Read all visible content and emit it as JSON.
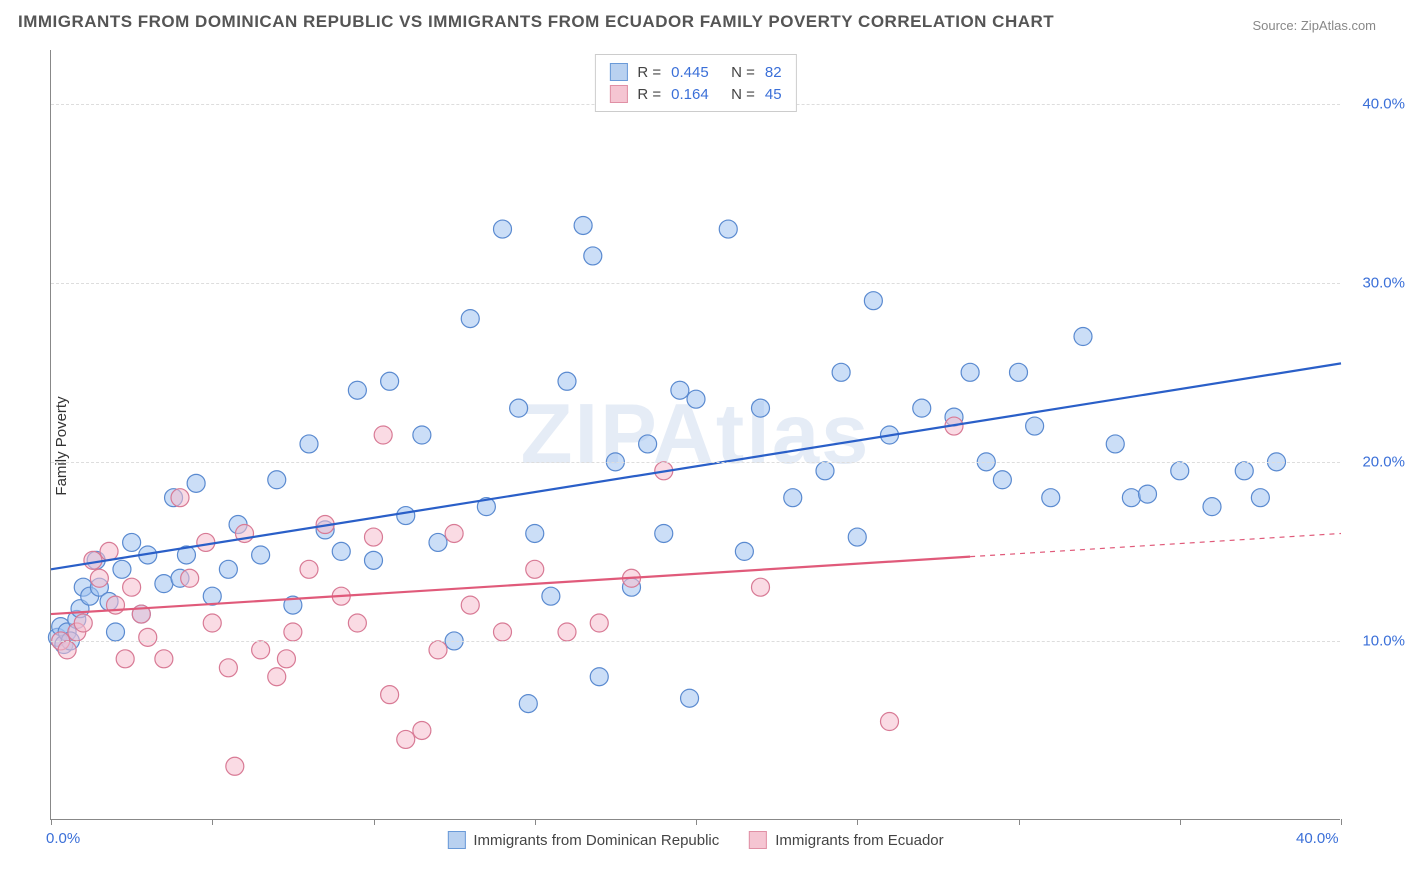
{
  "title": "IMMIGRANTS FROM DOMINICAN REPUBLIC VS IMMIGRANTS FROM ECUADOR FAMILY POVERTY CORRELATION CHART",
  "source": "Source: ZipAtlas.com",
  "ylabel": "Family Poverty",
  "watermark": "ZIPAtlas",
  "chart": {
    "type": "scatter-with-regression",
    "xlim": [
      0,
      40
    ],
    "ylim": [
      0,
      43
    ],
    "x_axis_labels": [
      {
        "val": 0,
        "text": "0.0%"
      },
      {
        "val": 40,
        "text": "40.0%"
      }
    ],
    "y_axis_labels": [
      {
        "val": 10,
        "text": "10.0%"
      },
      {
        "val": 20,
        "text": "20.0%"
      },
      {
        "val": 30,
        "text": "30.0%"
      },
      {
        "val": 40,
        "text": "40.0%"
      }
    ],
    "x_ticks": [
      0,
      5,
      10,
      15,
      20,
      25,
      30,
      35,
      40
    ],
    "grid_color": "#dddddd",
    "background_color": "#ffffff",
    "marker_radius": 9,
    "marker_stroke_width": 1.2,
    "line_width": 2.2,
    "series": [
      {
        "name": "Immigrants from Dominican Republic",
        "fill": "rgba(160,195,240,0.55)",
        "stroke": "#5a8ad0",
        "line_color": "#2a5fc8",
        "swatch_fill": "#b9d1f0",
        "swatch_border": "#6a9ad8",
        "R": "0.445",
        "N": "82",
        "regression": {
          "x1": 0,
          "y1": 14.0,
          "x2": 40,
          "y2": 25.5,
          "dash_from_x": null
        },
        "points": [
          [
            0.2,
            10.2
          ],
          [
            0.3,
            10.8
          ],
          [
            0.4,
            9.8
          ],
          [
            0.5,
            10.5
          ],
          [
            0.6,
            10.0
          ],
          [
            0.8,
            11.2
          ],
          [
            0.9,
            11.8
          ],
          [
            1.0,
            13.0
          ],
          [
            1.2,
            12.5
          ],
          [
            1.4,
            14.5
          ],
          [
            1.5,
            13.0
          ],
          [
            1.8,
            12.2
          ],
          [
            2.0,
            10.5
          ],
          [
            2.2,
            14.0
          ],
          [
            2.5,
            15.5
          ],
          [
            2.8,
            11.5
          ],
          [
            3.0,
            14.8
          ],
          [
            3.5,
            13.2
          ],
          [
            3.8,
            18.0
          ],
          [
            4.0,
            13.5
          ],
          [
            4.2,
            14.8
          ],
          [
            4.5,
            18.8
          ],
          [
            5.0,
            12.5
          ],
          [
            5.5,
            14.0
          ],
          [
            5.8,
            16.5
          ],
          [
            6.5,
            14.8
          ],
          [
            7.0,
            19.0
          ],
          [
            7.5,
            12.0
          ],
          [
            8.0,
            21.0
          ],
          [
            8.5,
            16.2
          ],
          [
            9.0,
            15.0
          ],
          [
            9.5,
            24.0
          ],
          [
            10.0,
            14.5
          ],
          [
            10.5,
            24.5
          ],
          [
            11.0,
            17.0
          ],
          [
            11.5,
            21.5
          ],
          [
            12.0,
            15.5
          ],
          [
            12.5,
            10.0
          ],
          [
            13.0,
            28.0
          ],
          [
            13.5,
            17.5
          ],
          [
            14.0,
            33.0
          ],
          [
            14.5,
            23.0
          ],
          [
            14.8,
            6.5
          ],
          [
            15.0,
            16.0
          ],
          [
            15.5,
            12.5
          ],
          [
            16.0,
            24.5
          ],
          [
            16.5,
            33.2
          ],
          [
            16.8,
            31.5
          ],
          [
            17.0,
            8.0
          ],
          [
            17.5,
            20.0
          ],
          [
            18.0,
            13.0
          ],
          [
            18.5,
            21.0
          ],
          [
            19.0,
            16.0
          ],
          [
            19.5,
            24.0
          ],
          [
            19.8,
            6.8
          ],
          [
            20.0,
            23.5
          ],
          [
            21.0,
            33.0
          ],
          [
            21.5,
            15.0
          ],
          [
            22.0,
            23.0
          ],
          [
            23.0,
            18.0
          ],
          [
            24.0,
            19.5
          ],
          [
            24.5,
            25.0
          ],
          [
            25.0,
            15.8
          ],
          [
            25.5,
            29.0
          ],
          [
            26.0,
            21.5
          ],
          [
            27.0,
            23.0
          ],
          [
            28.0,
            22.5
          ],
          [
            28.5,
            25.0
          ],
          [
            29.0,
            20.0
          ],
          [
            29.5,
            19.0
          ],
          [
            30.0,
            25.0
          ],
          [
            30.5,
            22.0
          ],
          [
            31.0,
            18.0
          ],
          [
            32.0,
            27.0
          ],
          [
            33.0,
            21.0
          ],
          [
            33.5,
            18.0
          ],
          [
            34.0,
            18.2
          ],
          [
            35.0,
            19.5
          ],
          [
            36.0,
            17.5
          ],
          [
            37.0,
            19.5
          ],
          [
            37.5,
            18.0
          ],
          [
            38.0,
            20.0
          ]
        ]
      },
      {
        "name": "Immigrants from Ecuador",
        "fill": "rgba(245,190,205,0.55)",
        "stroke": "#d87a95",
        "line_color": "#e05a7a",
        "swatch_fill": "#f5c5d2",
        "swatch_border": "#e090a5",
        "R": "0.164",
        "N": "45",
        "regression": {
          "x1": 0,
          "y1": 11.5,
          "x2": 40,
          "y2": 16.0,
          "dash_from_x": 28.5
        },
        "points": [
          [
            0.3,
            10.0
          ],
          [
            0.5,
            9.5
          ],
          [
            0.8,
            10.5
          ],
          [
            1.0,
            11.0
          ],
          [
            1.3,
            14.5
          ],
          [
            1.5,
            13.5
          ],
          [
            1.8,
            15.0
          ],
          [
            2.0,
            12.0
          ],
          [
            2.3,
            9.0
          ],
          [
            2.5,
            13.0
          ],
          [
            2.8,
            11.5
          ],
          [
            3.0,
            10.2
          ],
          [
            3.5,
            9.0
          ],
          [
            4.0,
            18.0
          ],
          [
            4.3,
            13.5
          ],
          [
            4.8,
            15.5
          ],
          [
            5.0,
            11.0
          ],
          [
            5.5,
            8.5
          ],
          [
            5.7,
            3.0
          ],
          [
            6.0,
            16.0
          ],
          [
            6.5,
            9.5
          ],
          [
            7.0,
            8.0
          ],
          [
            7.3,
            9.0
          ],
          [
            7.5,
            10.5
          ],
          [
            8.0,
            14.0
          ],
          [
            8.5,
            16.5
          ],
          [
            9.0,
            12.5
          ],
          [
            9.5,
            11.0
          ],
          [
            10.0,
            15.8
          ],
          [
            10.3,
            21.5
          ],
          [
            10.5,
            7.0
          ],
          [
            11.0,
            4.5
          ],
          [
            11.5,
            5.0
          ],
          [
            12.0,
            9.5
          ],
          [
            12.5,
            16.0
          ],
          [
            13.0,
            12.0
          ],
          [
            14.0,
            10.5
          ],
          [
            15.0,
            14.0
          ],
          [
            16.0,
            10.5
          ],
          [
            17.0,
            11.0
          ],
          [
            18.0,
            13.5
          ],
          [
            19.0,
            19.5
          ],
          [
            22.0,
            13.0
          ],
          [
            26.0,
            5.5
          ],
          [
            28.0,
            22.0
          ]
        ]
      }
    ]
  },
  "legend_top_template": {
    "r_label": "R =",
    "n_label": "N ="
  },
  "colors": {
    "title_text": "#555555",
    "axis_label": "#3a6fd8",
    "source_text": "#888888"
  }
}
